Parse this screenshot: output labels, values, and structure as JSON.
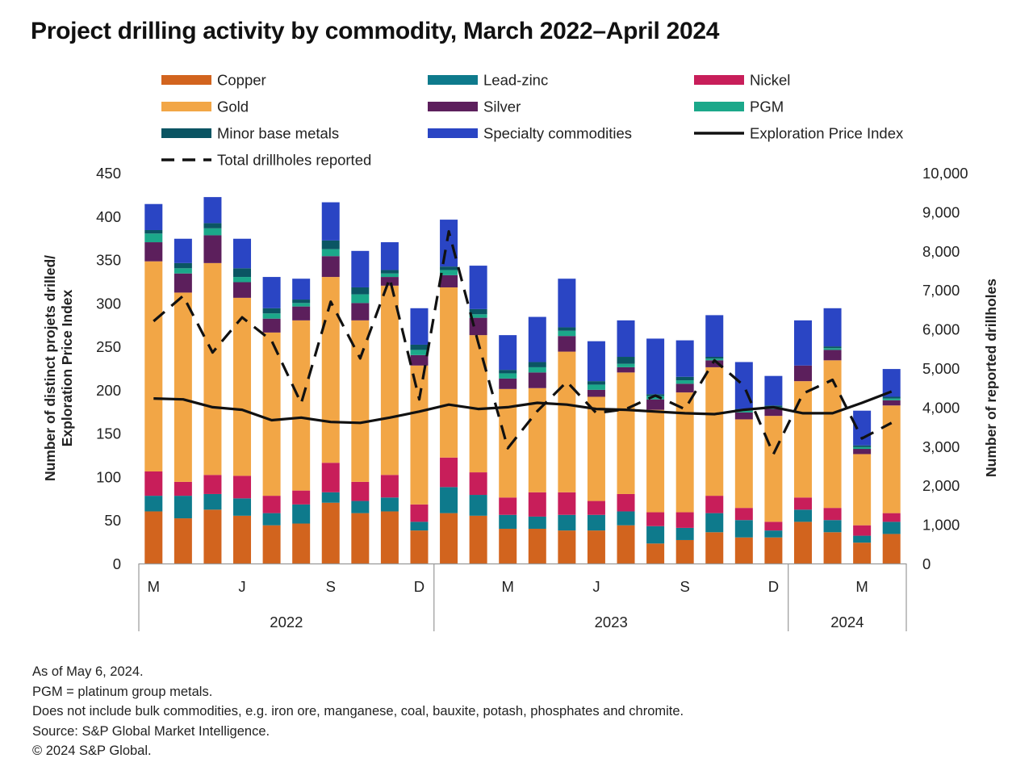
{
  "chart_data": {
    "type": "bar",
    "title": "Project drilling activity by commodity, March 2022–April 2024",
    "ylabel": "Number of distinct projets drilled/ Exploration Price Index",
    "y2label": "Number of reported drillholes",
    "ylim": [
      0,
      450
    ],
    "y2lim": [
      0,
      10000
    ],
    "yticks": [
      "0",
      "50",
      "100",
      "150",
      "200",
      "250",
      "300",
      "350",
      "400",
      "450"
    ],
    "y2ticks": [
      "0",
      "1,000",
      "2,000",
      "3,000",
      "4,000",
      "5,000",
      "6,000",
      "7,000",
      "8,000",
      "9,000",
      "10,000"
    ],
    "x_tick_labels": [
      {
        "index": 0,
        "label": "M"
      },
      {
        "index": 3,
        "label": "J"
      },
      {
        "index": 6,
        "label": "S"
      },
      {
        "index": 9,
        "label": "D"
      },
      {
        "index": 12,
        "label": "M"
      },
      {
        "index": 15,
        "label": "J"
      },
      {
        "index": 18,
        "label": "S"
      },
      {
        "index": 21,
        "label": "D"
      },
      {
        "index": 24,
        "label": "M"
      }
    ],
    "years": [
      {
        "label": "2022",
        "start": 0,
        "end": 9
      },
      {
        "label": "2023",
        "start": 10,
        "end": 21
      },
      {
        "label": "2024",
        "start": 22,
        "end": 25
      }
    ],
    "categories": [
      "Mar 2022",
      "Apr 2022",
      "May 2022",
      "Jun 2022",
      "Jul 2022",
      "Aug 2022",
      "Sep 2022",
      "Oct 2022",
      "Nov 2022",
      "Dec 2022",
      "Jan 2023",
      "Feb 2023",
      "Mar 2023",
      "Apr 2023",
      "May 2023",
      "Jun 2023",
      "Jul 2023",
      "Aug 2023",
      "Sep 2023",
      "Oct 2023",
      "Nov 2023",
      "Dec 2023",
      "Jan 2024",
      "Feb 2024",
      "Mar 2024",
      "Apr 2024"
    ],
    "series": [
      {
        "name": "Copper",
        "color": "#D2641E",
        "values": [
          60,
          52,
          62,
          55,
          44,
          46,
          70,
          58,
          60,
          38,
          58,
          55,
          40,
          40,
          38,
          38,
          44,
          23,
          27,
          36,
          30,
          30,
          48,
          36,
          24,
          34
        ]
      },
      {
        "name": "Lead-zinc",
        "color": "#0E7A8C",
        "values": [
          18,
          26,
          18,
          20,
          14,
          22,
          12,
          14,
          16,
          10,
          30,
          24,
          16,
          14,
          18,
          18,
          16,
          20,
          14,
          22,
          20,
          8,
          14,
          14,
          8,
          14
        ]
      },
      {
        "name": "Nickel",
        "color": "#C81E5A",
        "values": [
          28,
          16,
          22,
          26,
          20,
          16,
          34,
          22,
          26,
          20,
          34,
          26,
          20,
          28,
          26,
          16,
          20,
          16,
          18,
          20,
          14,
          10,
          14,
          14,
          12,
          10
        ]
      },
      {
        "name": "Gold",
        "color": "#F2A646",
        "values": [
          242,
          218,
          244,
          205,
          188,
          196,
          214,
          186,
          218,
          160,
          196,
          158,
          125,
          120,
          162,
          120,
          140,
          118,
          138,
          148,
          102,
          122,
          134,
          170,
          82,
          124
        ]
      },
      {
        "name": "Silver",
        "color": "#5C1F5C",
        "values": [
          22,
          22,
          32,
          18,
          16,
          16,
          24,
          20,
          10,
          12,
          14,
          20,
          12,
          18,
          18,
          8,
          6,
          12,
          10,
          8,
          8,
          8,
          18,
          12,
          6,
          6
        ]
      },
      {
        "name": "PGM",
        "color": "#1BA88A",
        "values": [
          10,
          6,
          8,
          6,
          6,
          4,
          8,
          10,
          4,
          6,
          6,
          4,
          6,
          6,
          6,
          6,
          4,
          4,
          4,
          2,
          2,
          2,
          0,
          2,
          2,
          2
        ]
      },
      {
        "name": "Minor base metals",
        "color": "#0B5563",
        "values": [
          4,
          6,
          6,
          10,
          6,
          4,
          10,
          8,
          4,
          6,
          4,
          6,
          4,
          6,
          4,
          4,
          8,
          2,
          4,
          2,
          2,
          2,
          0,
          2,
          2,
          2
        ]
      },
      {
        "name": "Specialty commodities",
        "color": "#2A45C4",
        "values": [
          30,
          28,
          30,
          34,
          36,
          24,
          44,
          42,
          32,
          42,
          54,
          50,
          40,
          52,
          56,
          46,
          42,
          64,
          42,
          48,
          54,
          34,
          52,
          44,
          40,
          32
        ]
      }
    ],
    "lines": [
      {
        "name": "Exploration Price Index",
        "axis": "left",
        "style": "solid",
        "color": "#111111",
        "values": [
          190,
          189,
          180,
          177,
          165,
          168,
          163,
          162,
          168,
          175,
          183,
          178,
          180,
          185,
          183,
          178,
          177,
          175,
          173,
          172,
          177,
          180,
          173,
          173,
          185,
          198
        ]
      },
      {
        "name": "Total drillholes reported",
        "axis": "right",
        "style": "dashed",
        "color": "#111111",
        "values": [
          6200,
          6850,
          5400,
          6300,
          5700,
          4100,
          6700,
          5250,
          7300,
          4200,
          8500,
          5650,
          2950,
          3900,
          4650,
          3850,
          3950,
          4300,
          3950,
          5200,
          4550,
          2800,
          4350,
          4700,
          3200,
          3600
        ]
      }
    ],
    "legend_order": [
      "Copper",
      "Lead-zinc",
      "Nickel",
      "Gold",
      "Silver",
      "PGM",
      "Minor base metals",
      "Specialty commodities",
      "Exploration Price Index",
      "Total drillholes reported"
    ]
  },
  "notes": [
    "As of May 6, 2024.",
    "PGM = platinum group metals.",
    "Does not include bulk commodities, e.g. iron ore, manganese, coal, bauxite, potash, phosphates and chromite.",
    "Source: S&P Global Market Intelligence.",
    "© 2024 S&P Global."
  ]
}
